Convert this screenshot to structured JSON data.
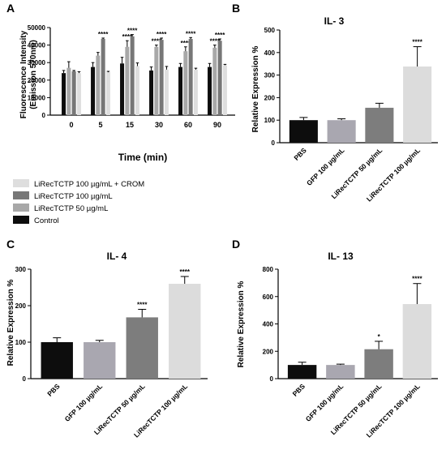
{
  "colors": {
    "control": "#0d0d0d",
    "lirec50": "#a8a8a8",
    "lirec100": "#777777",
    "lirec100crom": "#dedede",
    "pbs": "#0d0d0d",
    "gfp": "#a9a7b0",
    "lirec50_bar": "#7d7d7d",
    "lirec100_bar": "#dcdcdc"
  },
  "legend": {
    "items": [
      {
        "label": "LiRecTCTP 100 µg/mL + CROM",
        "color": "#dedede"
      },
      {
        "label": "LiRecTCTP 100 µg/mL",
        "color": "#777777"
      },
      {
        "label": "LiRecTCTP 50 µg/mL",
        "color": "#a8a8a8"
      },
      {
        "label": "Control",
        "color": "#0d0d0d"
      }
    ]
  },
  "chart_data": [
    {
      "panel": "A",
      "type": "bar",
      "title": "",
      "ylabel": "Fluorescence Intensity (Emission 570nm)",
      "xlabel": "Time (min)",
      "categories": [
        "0",
        "5",
        "15",
        "30",
        "60",
        "90"
      ],
      "ylim": [
        0,
        50000
      ],
      "yticks": [
        "0",
        "10000",
        "20000",
        "30000",
        "40000",
        "50000"
      ],
      "series": [
        {
          "name": "Control",
          "color": "#0d0d0d",
          "values": [
            24000,
            27500,
            29500,
            25500,
            27500,
            27500
          ],
          "errors": [
            1500,
            2500,
            3500,
            2000,
            2000,
            2000
          ]
        },
        {
          "name": "LiRecTCTP 50 µg/mL",
          "color": "#a8a8a8",
          "values": [
            27000,
            34000,
            39000,
            39000,
            36500,
            38500
          ],
          "errors": [
            3500,
            1800,
            3500,
            1000,
            2500,
            1500
          ]
        },
        {
          "name": "LiRecTCTP 100 µg/mL",
          "color": "#777777",
          "values": [
            25000,
            43500,
            45000,
            43000,
            43500,
            42500
          ],
          "errors": [
            500,
            500,
            1000,
            1000,
            800,
            1000
          ]
        },
        {
          "name": "LiRecTCTP 100 µg/mL + CROM",
          "color": "#dedede",
          "values": [
            24000,
            24500,
            28000,
            26000,
            26000,
            28500
          ],
          "errors": [
            800,
            500,
            1800,
            1800,
            800,
            500
          ]
        }
      ],
      "annotations": [
        {
          "group": 1,
          "series": 2,
          "text": "****"
        },
        {
          "group": 2,
          "series": 1,
          "text": "****"
        },
        {
          "group": 2,
          "series": 2,
          "text": "****"
        },
        {
          "group": 3,
          "series": 1,
          "text": "****"
        },
        {
          "group": 3,
          "series": 2,
          "text": "****"
        },
        {
          "group": 4,
          "series": 1,
          "text": "****"
        },
        {
          "group": 4,
          "series": 2,
          "text": "****"
        },
        {
          "group": 5,
          "series": 1,
          "text": "****"
        },
        {
          "group": 5,
          "series": 2,
          "text": "****"
        }
      ]
    },
    {
      "panel": "B",
      "type": "bar",
      "title": "IL- 3",
      "ylabel": "Relative Expression %",
      "categories": [
        "PBS",
        "GFP 100 µg/mL",
        "LiRecTCTP 50 µg/mL",
        "LiRecTCTP 100 µg/mL"
      ],
      "colors": [
        "#0d0d0d",
        "#a9a7b0",
        "#7d7d7d",
        "#dcdcdc"
      ],
      "values": [
        100,
        100,
        155,
        338
      ],
      "errors": [
        12,
        6,
        20,
        88
      ],
      "ylim": [
        0,
        500
      ],
      "yticks": [
        "0",
        "100",
        "200",
        "300",
        "400",
        "500"
      ],
      "annotations": [
        {
          "index": 3,
          "text": "****"
        }
      ]
    },
    {
      "panel": "C",
      "type": "bar",
      "title": "IL- 4",
      "ylabel": "Relative Expression %",
      "categories": [
        "PBS",
        "GFP 100 µg/mL",
        "LiRecTCTP 50 µg/mL",
        "LiRecTCTP 100 µg/mL"
      ],
      "colors": [
        "#0d0d0d",
        "#a9a7b0",
        "#7d7d7d",
        "#dcdcdc"
      ],
      "values": [
        100,
        100,
        168,
        260
      ],
      "errors": [
        12,
        5,
        22,
        20
      ],
      "ylim": [
        0,
        300
      ],
      "yticks": [
        "0",
        "100",
        "200",
        "300"
      ],
      "annotations": [
        {
          "index": 2,
          "text": "****"
        },
        {
          "index": 3,
          "text": "****"
        }
      ]
    },
    {
      "panel": "D",
      "type": "bar",
      "title": "IL- 13",
      "ylabel": "Relative Expression %",
      "categories": [
        "PBS",
        "GFP 100 µg/mL",
        "LiRecTCTP 50 µg/mL",
        "LiRecTCTP 100 µg/mL"
      ],
      "colors": [
        "#0d0d0d",
        "#a9a7b0",
        "#7d7d7d",
        "#dcdcdc"
      ],
      "values": [
        100,
        100,
        215,
        545
      ],
      "errors": [
        20,
        6,
        58,
        150
      ],
      "ylim": [
        0,
        800
      ],
      "yticks": [
        "0",
        "200",
        "400",
        "600",
        "800"
      ],
      "annotations": [
        {
          "index": 2,
          "text": "*"
        },
        {
          "index": 3,
          "text": "****"
        }
      ]
    }
  ]
}
